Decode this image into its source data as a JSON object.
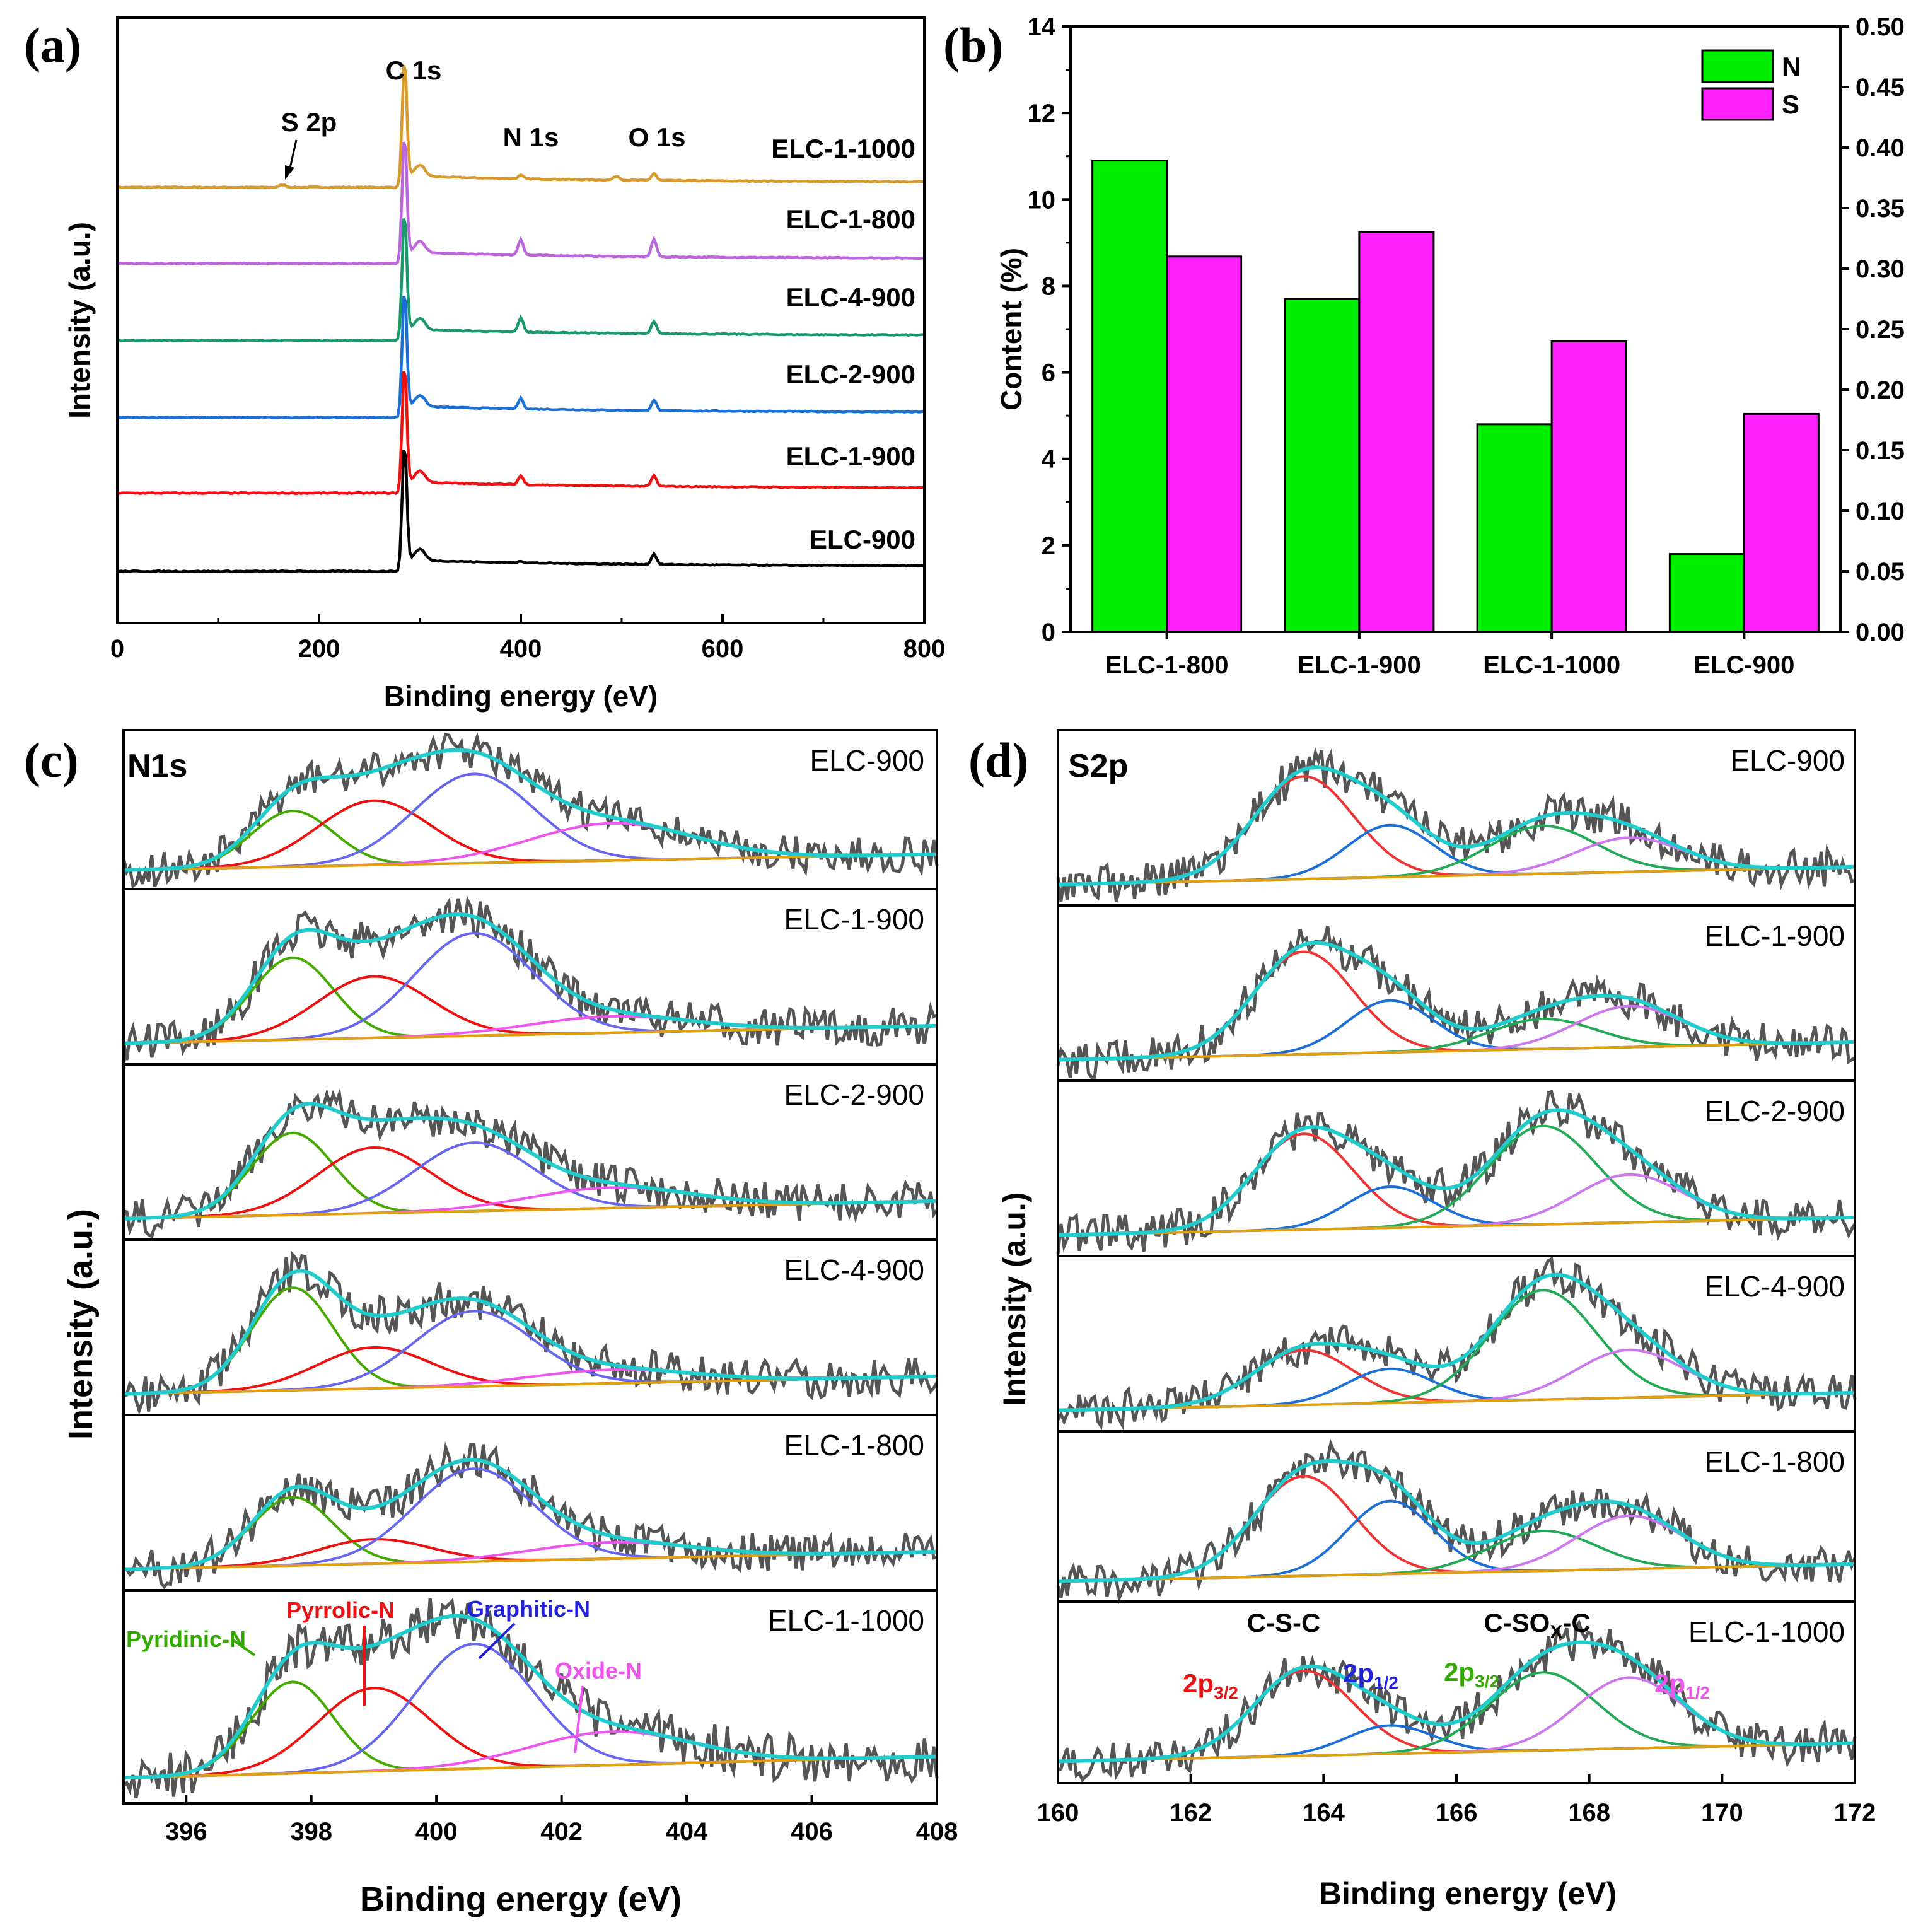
{
  "figure": {
    "panel_labels": [
      "(a)",
      "(b)",
      "(c)",
      "(d)"
    ],
    "colors": {
      "ELC-900": "#000000",
      "ELC-1-900": "#ee1111",
      "ELC-2-900": "#1b6fd6",
      "ELC-4-900": "#1a9a6a",
      "ELC-1-800": "#bb66dd",
      "ELC-1-1000": "#d89a2a",
      "data": "#555555",
      "envelope": "#22cccc",
      "baseline": "#e0a010",
      "pyridinic": "#44aa00",
      "pyrrolic": "#ee1111",
      "graphitic": "#6666ee",
      "oxide": "#ee55ee",
      "bar_N": "#00ee00",
      "bar_S": "#ff22ff"
    }
  },
  "chart_data": [
    {
      "panel": "(a)",
      "type": "line",
      "xlabel": "Binding energy (eV)",
      "ylabel": "Intensity (a.u.)",
      "xlim": [
        0,
        800
      ],
      "xticks": [
        "0",
        "200",
        "400",
        "600",
        "800"
      ],
      "annotations": [
        "S 2p",
        "C 1s",
        "N 1s",
        "O 1s"
      ],
      "peak_positions_eV": {
        "S 2p": 164,
        "C 1s": 284.6,
        "N 1s": 400,
        "O 1s": 532
      },
      "series": [
        {
          "name": "ELC-1-1000",
          "N_peak": 0.2,
          "O_peak": 0.4
        },
        {
          "name": "ELC-1-800",
          "N_peak": 0.9,
          "O_peak": 1.0
        },
        {
          "name": "ELC-4-900",
          "N_peak": 0.8,
          "O_peak": 0.7
        },
        {
          "name": "ELC-2-900",
          "N_peak": 0.6,
          "O_peak": 0.6
        },
        {
          "name": "ELC-1-900",
          "N_peak": 0.5,
          "O_peak": 0.6
        },
        {
          "name": "ELC-900",
          "N_peak": 0.1,
          "O_peak": 0.6
        }
      ]
    },
    {
      "panel": "(b)",
      "type": "bar",
      "categories": [
        "ELC-1-800",
        "ELC-1-900",
        "ELC-1-1000",
        "ELC-900"
      ],
      "series": [
        {
          "name": "N",
          "axis": "left",
          "values": [
            10.9,
            7.7,
            4.8,
            1.8
          ]
        },
        {
          "name": "S",
          "axis": "right",
          "values": [
            0.31,
            0.33,
            0.24,
            0.18
          ]
        }
      ],
      "ylabel": "Content (%)",
      "ylim": [
        0,
        14
      ],
      "yticks": [
        "0",
        "2",
        "4",
        "6",
        "8",
        "10",
        "12",
        "14"
      ],
      "y2lim": [
        0,
        0.5
      ],
      "y2ticks": [
        "0.00",
        "0.05",
        "0.10",
        "0.15",
        "0.20",
        "0.25",
        "0.30",
        "0.35",
        "0.40",
        "0.45",
        "0.50"
      ],
      "legend": "top-right"
    },
    {
      "panel": "(c)",
      "type": "line",
      "title": "N1s",
      "xlabel": "Binding energy (eV)",
      "ylabel": "Intensity (a.u.)",
      "xlim": [
        395,
        408
      ],
      "xticks": [
        "396",
        "398",
        "400",
        "402",
        "404",
        "406",
        "408"
      ],
      "components": [
        "Pyridinic-N",
        "Pyrrolic-N",
        "Graphitic-N",
        "Oxide-N"
      ],
      "component_centers_eV": [
        397.7,
        399.0,
        400.6,
        402.8
      ],
      "series": [
        {
          "name": "ELC-900",
          "pyridinic": 0.45,
          "pyrrolic": 0.52,
          "graphitic": 0.72,
          "oxide": 0.3
        },
        {
          "name": "ELC-1-900",
          "pyridinic": 0.6,
          "pyrrolic": 0.45,
          "graphitic": 0.75,
          "oxide": 0.12
        },
        {
          "name": "ELC-2-900",
          "pyridinic": 0.6,
          "pyrrolic": 0.48,
          "graphitic": 0.5,
          "oxide": 0.15
        },
        {
          "name": "ELC-4-900",
          "pyridinic": 0.75,
          "pyrrolic": 0.3,
          "graphitic": 0.55,
          "oxide": 0.1
        },
        {
          "name": "ELC-1-800",
          "pyridinic": 0.5,
          "pyrrolic": 0.18,
          "graphitic": 0.68,
          "oxide": 0.12
        },
        {
          "name": "ELC-1-1000",
          "pyridinic": 0.55,
          "pyrrolic": 0.5,
          "graphitic": 0.75,
          "oxide": 0.2
        }
      ],
      "annotations": [
        "Pyridinic-N",
        "Pyrrolic-N",
        "Graphitic-N",
        "Oxide-N"
      ]
    },
    {
      "panel": "(d)",
      "type": "line",
      "title": "S2p",
      "xlabel": "Binding energy (eV)",
      "ylabel": "Intensity (a.u.)",
      "xlim": [
        160,
        172
      ],
      "xticks": [
        "160",
        "162",
        "164",
        "166",
        "168",
        "170",
        "172"
      ],
      "component_centers_eV": [
        163.7,
        165.0,
        167.3,
        168.6
      ],
      "series": [
        {
          "name": "ELC-900",
          "c1": 0.75,
          "c2": 0.38,
          "c3": 0.35,
          "c4": 0.25
        },
        {
          "name": "ELC-1-900",
          "c1": 0.75,
          "c2": 0.38,
          "c3": 0.22,
          "c4": 0.3
        },
        {
          "name": "ELC-2-900",
          "c1": 0.7,
          "c2": 0.3,
          "c3": 0.72,
          "c4": 0.35
        },
        {
          "name": "ELC-4-900",
          "c1": 0.4,
          "c2": 0.25,
          "c3": 0.8,
          "c4": 0.35
        },
        {
          "name": "ELC-1-800",
          "c1": 0.75,
          "c2": 0.55,
          "c3": 0.3,
          "c4": 0.4
        },
        {
          "name": "ELC-1-1000",
          "c1": 0.6,
          "c2": 0.2,
          "c3": 0.55,
          "c4": 0.5
        }
      ],
      "annotations": {
        "left_group": "C-S-C",
        "right_group_main": "C-SO",
        "right_group_sub": "X",
        "right_group_end": "-C",
        "labels": [
          {
            "main": "2p",
            "sub": "3/2"
          },
          {
            "main": "2p",
            "sub": "1/2"
          },
          {
            "main": "2p",
            "sub": "3/2"
          },
          {
            "main": "2p",
            "sub": "1/2"
          }
        ]
      }
    }
  ]
}
